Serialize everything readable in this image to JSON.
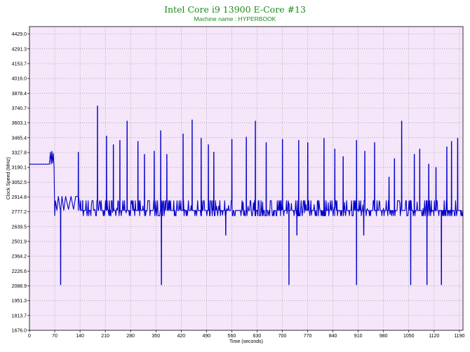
{
  "chart_data": {
    "type": "line",
    "title": "Intel Core i9 13900 E-Core #13",
    "subtitle": "Machine name : HYPERBOOK",
    "xlabel": "Time (seconds)",
    "ylabel": "Clock Speed (MHz)",
    "xlim": [
      0,
      1200
    ],
    "ylim": [
      1676.0,
      4497.8
    ],
    "x_ticks": [
      0,
      70,
      140,
      210,
      280,
      350,
      420,
      490,
      560,
      630,
      700,
      770,
      840,
      910,
      980,
      1050,
      1120,
      1190
    ],
    "y_ticks": [
      "4429.0",
      "4291.3",
      "4153.7",
      "4016.0",
      "3878.4",
      "3740.7",
      "3603.1",
      "3465.4",
      "3327.8",
      "3190.1",
      "3052.5",
      "2914.8",
      "2777.2",
      "2639.5",
      "2501.9",
      "2364.2",
      "2226.6",
      "2088.9",
      "1951.3",
      "1813.7",
      "1676.0"
    ],
    "grid": true,
    "line_color": "#0000c8",
    "background_color": "#f5e6fa",
    "series": [
      {
        "name": "",
        "base": [
          [
            0,
            3220
          ],
          [
            55,
            3220
          ],
          [
            58,
            3330
          ],
          [
            60,
            3220
          ],
          [
            62,
            3340
          ],
          [
            64,
            3230
          ],
          [
            66,
            3320
          ],
          [
            68,
            3200
          ],
          [
            70,
            2740
          ],
          [
            72,
            2880
          ],
          [
            76,
            2790
          ],
          [
            80,
            2920
          ],
          [
            85,
            2800
          ],
          [
            90,
            2920
          ],
          [
            95,
            2790
          ],
          [
            100,
            2920
          ],
          [
            108,
            2800
          ],
          [
            115,
            2920
          ],
          [
            122,
            2800
          ],
          [
            128,
            2920
          ],
          [
            135,
            2790
          ],
          [
            140,
            2790
          ],
          [
            1200,
            2790
          ]
        ],
        "noise_range": [
          2740,
          2880
        ],
        "spikes_up": [
          [
            135,
            3330
          ],
          [
            147,
            2880
          ],
          [
            188,
            3760
          ],
          [
            213,
            3480
          ],
          [
            232,
            3400
          ],
          [
            250,
            3440
          ],
          [
            270,
            3620
          ],
          [
            300,
            3430
          ],
          [
            318,
            3310
          ],
          [
            345,
            3340
          ],
          [
            363,
            3530
          ],
          [
            380,
            3310
          ],
          [
            425,
            3500
          ],
          [
            450,
            3630
          ],
          [
            475,
            3460
          ],
          [
            495,
            3400
          ],
          [
            510,
            3330
          ],
          [
            560,
            3450
          ],
          [
            600,
            3470
          ],
          [
            625,
            3620
          ],
          [
            655,
            3420
          ],
          [
            700,
            3450
          ],
          [
            745,
            3440
          ],
          [
            770,
            3420
          ],
          [
            815,
            3460
          ],
          [
            845,
            3360
          ],
          [
            868,
            3290
          ],
          [
            905,
            3440
          ],
          [
            928,
            3340
          ],
          [
            955,
            3420
          ],
          [
            995,
            3100
          ],
          [
            1010,
            3270
          ],
          [
            1030,
            3620
          ],
          [
            1065,
            3310
          ],
          [
            1080,
            3360
          ],
          [
            1105,
            3220
          ],
          [
            1125,
            3190
          ],
          [
            1155,
            3380
          ],
          [
            1168,
            3430
          ],
          [
            1185,
            3460
          ]
        ],
        "spikes_down": [
          [
            86,
            2100
          ],
          [
            365,
            2100
          ],
          [
            543,
            2560
          ],
          [
            718,
            2100
          ],
          [
            740,
            2560
          ],
          [
            905,
            2100
          ],
          [
            925,
            2560
          ],
          [
            1055,
            2100
          ],
          [
            1100,
            2100
          ],
          [
            1140,
            2100
          ]
        ]
      }
    ]
  }
}
